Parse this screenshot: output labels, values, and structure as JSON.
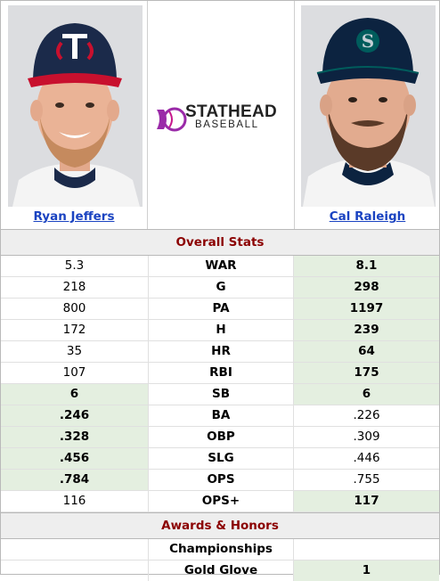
{
  "players": {
    "left": {
      "name": "Ryan Jeffers",
      "cap_color": "#1b2a4a",
      "cap_logo": "TC"
    },
    "right": {
      "name": "Cal Raleigh",
      "cap_color": "#0c2340",
      "cap_logo": "S"
    }
  },
  "logo": {
    "line1": "STATHEAD",
    "line2": "BASEBALL",
    "accent": "#9a2aa8"
  },
  "overall": {
    "title": "Overall Stats",
    "rows": [
      {
        "stat": "WAR",
        "left": "5.3",
        "right": "8.1",
        "winner": "right"
      },
      {
        "stat": "G",
        "left": "218",
        "right": "298",
        "winner": "right"
      },
      {
        "stat": "PA",
        "left": "800",
        "right": "1197",
        "winner": "right"
      },
      {
        "stat": "H",
        "left": "172",
        "right": "239",
        "winner": "right"
      },
      {
        "stat": "HR",
        "left": "35",
        "right": "64",
        "winner": "right"
      },
      {
        "stat": "RBI",
        "left": "107",
        "right": "175",
        "winner": "right"
      },
      {
        "stat": "SB",
        "left": "6",
        "right": "6",
        "winner": "both"
      },
      {
        "stat": "BA",
        "left": ".246",
        "right": ".226",
        "winner": "left"
      },
      {
        "stat": "OBP",
        "left": ".328",
        "right": ".309",
        "winner": "left"
      },
      {
        "stat": "SLG",
        "left": ".456",
        "right": ".446",
        "winner": "left"
      },
      {
        "stat": "OPS",
        "left": ".784",
        "right": ".755",
        "winner": "left"
      },
      {
        "stat": "OPS+",
        "left": "116",
        "right": "117",
        "winner": "right"
      }
    ]
  },
  "awards": {
    "title": "Awards & Honors",
    "rows": [
      {
        "stat": "Championships",
        "left": "",
        "right": "",
        "winner": "none"
      },
      {
        "stat": "Gold Glove",
        "left": "",
        "right": "1",
        "winner": "right"
      }
    ]
  },
  "colors": {
    "winner_bg": "#e4efe0",
    "link": "#1a43c1",
    "section_title": "#8b0000"
  }
}
